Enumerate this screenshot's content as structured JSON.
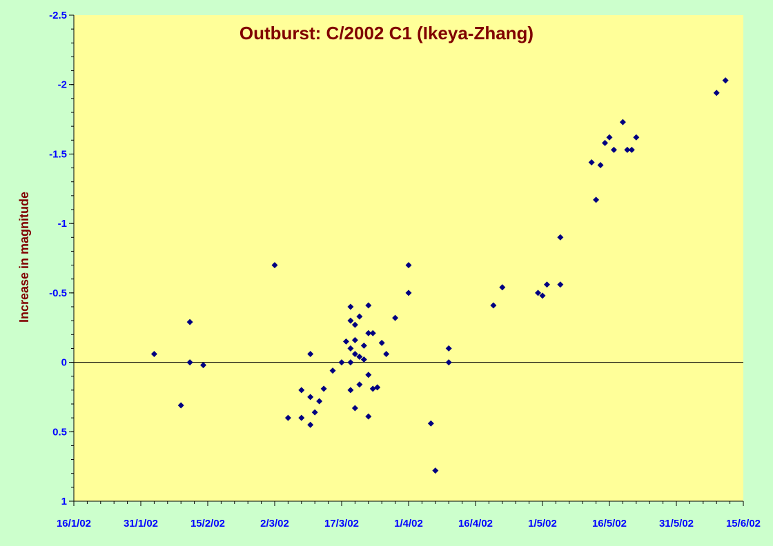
{
  "chart_data": {
    "type": "scatter",
    "title": "Outburst: C/2002 C1 (Ikeya-Zhang)",
    "xlabel": "",
    "ylabel": "Increase in magnitude",
    "x_tick_labels": [
      "16/1/02",
      "31/1/02",
      "15/2/02",
      "2/3/02",
      "17/3/02",
      "1/4/02",
      "16/4/02",
      "1/5/02",
      "16/5/02",
      "31/5/02",
      "15/6/02"
    ],
    "x_tick_values": [
      "2002-01-16",
      "2002-01-31",
      "2002-02-15",
      "2002-03-02",
      "2002-03-17",
      "2002-04-01",
      "2002-04-16",
      "2002-05-01",
      "2002-05-16",
      "2002-05-31",
      "2002-06-15"
    ],
    "y_tick_labels": [
      "-2.5",
      "-2",
      "-1.5",
      "-1",
      "-0.5",
      "0",
      "0.5",
      "1"
    ],
    "y_tick_values": [
      -2.5,
      -2,
      -1.5,
      -1,
      -0.5,
      0,
      0.5,
      1
    ],
    "xlim": [
      "2002-01-16",
      "2002-06-15"
    ],
    "ylim": [
      -2.5,
      1
    ],
    "y_inverted": true,
    "grid": false,
    "legend": "none",
    "reference_line_y": 0,
    "series": [
      {
        "points": [
          {
            "x": "2002-02-03",
            "y": -0.06
          },
          {
            "x": "2002-02-09",
            "y": 0.31
          },
          {
            "x": "2002-02-11",
            "y": -0.29
          },
          {
            "x": "2002-02-11",
            "y": 0.0
          },
          {
            "x": "2002-02-14",
            "y": 0.02
          },
          {
            "x": "2002-03-02",
            "y": -0.7
          },
          {
            "x": "2002-03-05",
            "y": 0.4
          },
          {
            "x": "2002-03-08",
            "y": 0.2
          },
          {
            "x": "2002-03-08",
            "y": 0.4
          },
          {
            "x": "2002-03-10",
            "y": -0.06
          },
          {
            "x": "2002-03-10",
            "y": 0.25
          },
          {
            "x": "2002-03-10",
            "y": 0.45
          },
          {
            "x": "2002-03-11",
            "y": 0.36
          },
          {
            "x": "2002-03-12",
            "y": 0.28
          },
          {
            "x": "2002-03-13",
            "y": 0.19
          },
          {
            "x": "2002-03-15",
            "y": 0.06
          },
          {
            "x": "2002-03-17",
            "y": 0.0
          },
          {
            "x": "2002-03-18",
            "y": -0.15
          },
          {
            "x": "2002-03-19",
            "y": -0.4
          },
          {
            "x": "2002-03-19",
            "y": -0.3
          },
          {
            "x": "2002-03-19",
            "y": -0.1
          },
          {
            "x": "2002-03-19",
            "y": 0.0
          },
          {
            "x": "2002-03-19",
            "y": 0.2
          },
          {
            "x": "2002-03-20",
            "y": -0.27
          },
          {
            "x": "2002-03-20",
            "y": -0.16
          },
          {
            "x": "2002-03-20",
            "y": -0.06
          },
          {
            "x": "2002-03-20",
            "y": 0.33
          },
          {
            "x": "2002-03-21",
            "y": -0.33
          },
          {
            "x": "2002-03-21",
            "y": -0.04
          },
          {
            "x": "2002-03-21",
            "y": 0.16
          },
          {
            "x": "2002-03-22",
            "y": -0.12
          },
          {
            "x": "2002-03-22",
            "y": -0.02
          },
          {
            "x": "2002-03-23",
            "y": -0.41
          },
          {
            "x": "2002-03-23",
            "y": -0.21
          },
          {
            "x": "2002-03-23",
            "y": 0.09
          },
          {
            "x": "2002-03-23",
            "y": 0.39
          },
          {
            "x": "2002-03-24",
            "y": -0.21
          },
          {
            "x": "2002-03-24",
            "y": 0.19
          },
          {
            "x": "2002-03-25",
            "y": 0.18
          },
          {
            "x": "2002-03-26",
            "y": -0.14
          },
          {
            "x": "2002-03-27",
            "y": -0.06
          },
          {
            "x": "2002-03-29",
            "y": -0.32
          },
          {
            "x": "2002-04-01",
            "y": -0.7
          },
          {
            "x": "2002-04-01",
            "y": -0.5
          },
          {
            "x": "2002-04-06",
            "y": 0.44
          },
          {
            "x": "2002-04-07",
            "y": 0.78
          },
          {
            "x": "2002-04-10",
            "y": -0.1
          },
          {
            "x": "2002-04-10",
            "y": 0.0
          },
          {
            "x": "2002-04-20",
            "y": -0.41
          },
          {
            "x": "2002-04-22",
            "y": -0.54
          },
          {
            "x": "2002-04-30",
            "y": -0.5
          },
          {
            "x": "2002-05-01",
            "y": -0.48
          },
          {
            "x": "2002-05-02",
            "y": -0.56
          },
          {
            "x": "2002-05-05",
            "y": -0.56
          },
          {
            "x": "2002-05-05",
            "y": -0.9
          },
          {
            "x": "2002-05-12",
            "y": -1.44
          },
          {
            "x": "2002-05-13",
            "y": -1.17
          },
          {
            "x": "2002-05-14",
            "y": -1.42
          },
          {
            "x": "2002-05-15",
            "y": -1.58
          },
          {
            "x": "2002-05-16",
            "y": -1.62
          },
          {
            "x": "2002-05-17",
            "y": -1.53
          },
          {
            "x": "2002-05-19",
            "y": -1.73
          },
          {
            "x": "2002-05-20",
            "y": -1.53
          },
          {
            "x": "2002-05-21",
            "y": -1.53
          },
          {
            "x": "2002-05-22",
            "y": -1.62
          },
          {
            "x": "2002-06-09",
            "y": -1.94
          },
          {
            "x": "2002-06-11",
            "y": -2.03
          }
        ]
      }
    ]
  },
  "colors": {
    "page_background": "#ccffcc",
    "plot_background": "#ffff99",
    "marker": "#000080",
    "tick_label": "#0000ff",
    "title": "#800000",
    "axis_line": "#000000"
  }
}
